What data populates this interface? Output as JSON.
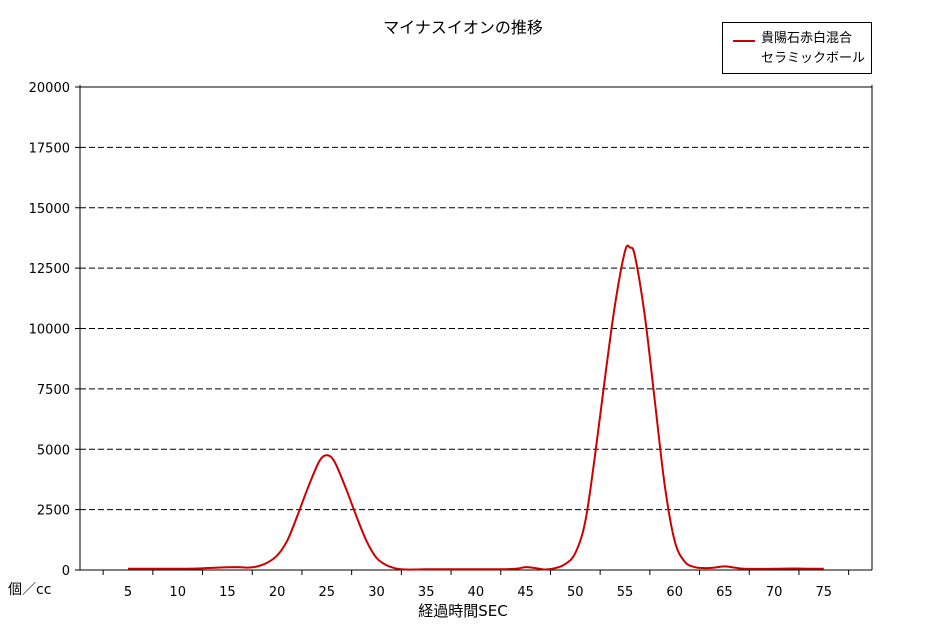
{
  "chart_data": {
    "type": "line",
    "title": "マイナスイオンの推移",
    "xlabel": "経過時間SEC",
    "ylabel": "個／cc",
    "x_ticks": [
      5,
      10,
      15,
      20,
      25,
      30,
      35,
      40,
      45,
      50,
      55,
      60,
      65,
      70,
      75
    ],
    "y_ticks": [
      0,
      2500,
      5000,
      7500,
      10000,
      12500,
      15000,
      17500,
      20000
    ],
    "xlim": [
      0,
      75
    ],
    "ylim": [
      0,
      20000
    ],
    "grid": "horizontal dashed",
    "legend_position": "top-right",
    "series": [
      {
        "name": "貴陽石赤白混合\nセラミックボール",
        "color": "#cc0000",
        "points": [
          [
            5,
            50
          ],
          [
            7,
            50
          ],
          [
            10,
            50
          ],
          [
            12,
            60
          ],
          [
            14,
            100
          ],
          [
            16,
            120
          ],
          [
            17,
            100
          ],
          [
            18,
            150
          ],
          [
            19,
            300
          ],
          [
            20,
            600
          ],
          [
            21,
            1200
          ],
          [
            22,
            2200
          ],
          [
            23,
            3300
          ],
          [
            24,
            4300
          ],
          [
            24.5,
            4650
          ],
          [
            25,
            4750
          ],
          [
            25.5,
            4650
          ],
          [
            26,
            4300
          ],
          [
            27,
            3300
          ],
          [
            28,
            2200
          ],
          [
            29,
            1200
          ],
          [
            30,
            500
          ],
          [
            31,
            200
          ],
          [
            32,
            60
          ],
          [
            33,
            20
          ],
          [
            34,
            20
          ],
          [
            35,
            30
          ],
          [
            37,
            30
          ],
          [
            40,
            30
          ],
          [
            42,
            30
          ],
          [
            44,
            50
          ],
          [
            45,
            120
          ],
          [
            46,
            80
          ],
          [
            47,
            20
          ],
          [
            48,
            80
          ],
          [
            49,
            250
          ],
          [
            50,
            700
          ],
          [
            51,
            2000
          ],
          [
            52,
            4800
          ],
          [
            53,
            8000
          ],
          [
            54,
            11000
          ],
          [
            55,
            13200
          ],
          [
            55.5,
            13350
          ],
          [
            56,
            13000
          ],
          [
            57,
            10500
          ],
          [
            58,
            7000
          ],
          [
            59,
            3500
          ],
          [
            60,
            1200
          ],
          [
            61,
            350
          ],
          [
            62,
            120
          ],
          [
            63,
            80
          ],
          [
            64,
            100
          ],
          [
            65,
            150
          ],
          [
            66,
            100
          ],
          [
            67,
            50
          ],
          [
            70,
            50
          ],
          [
            72,
            60
          ],
          [
            74,
            50
          ],
          [
            75,
            50
          ]
        ]
      }
    ]
  }
}
